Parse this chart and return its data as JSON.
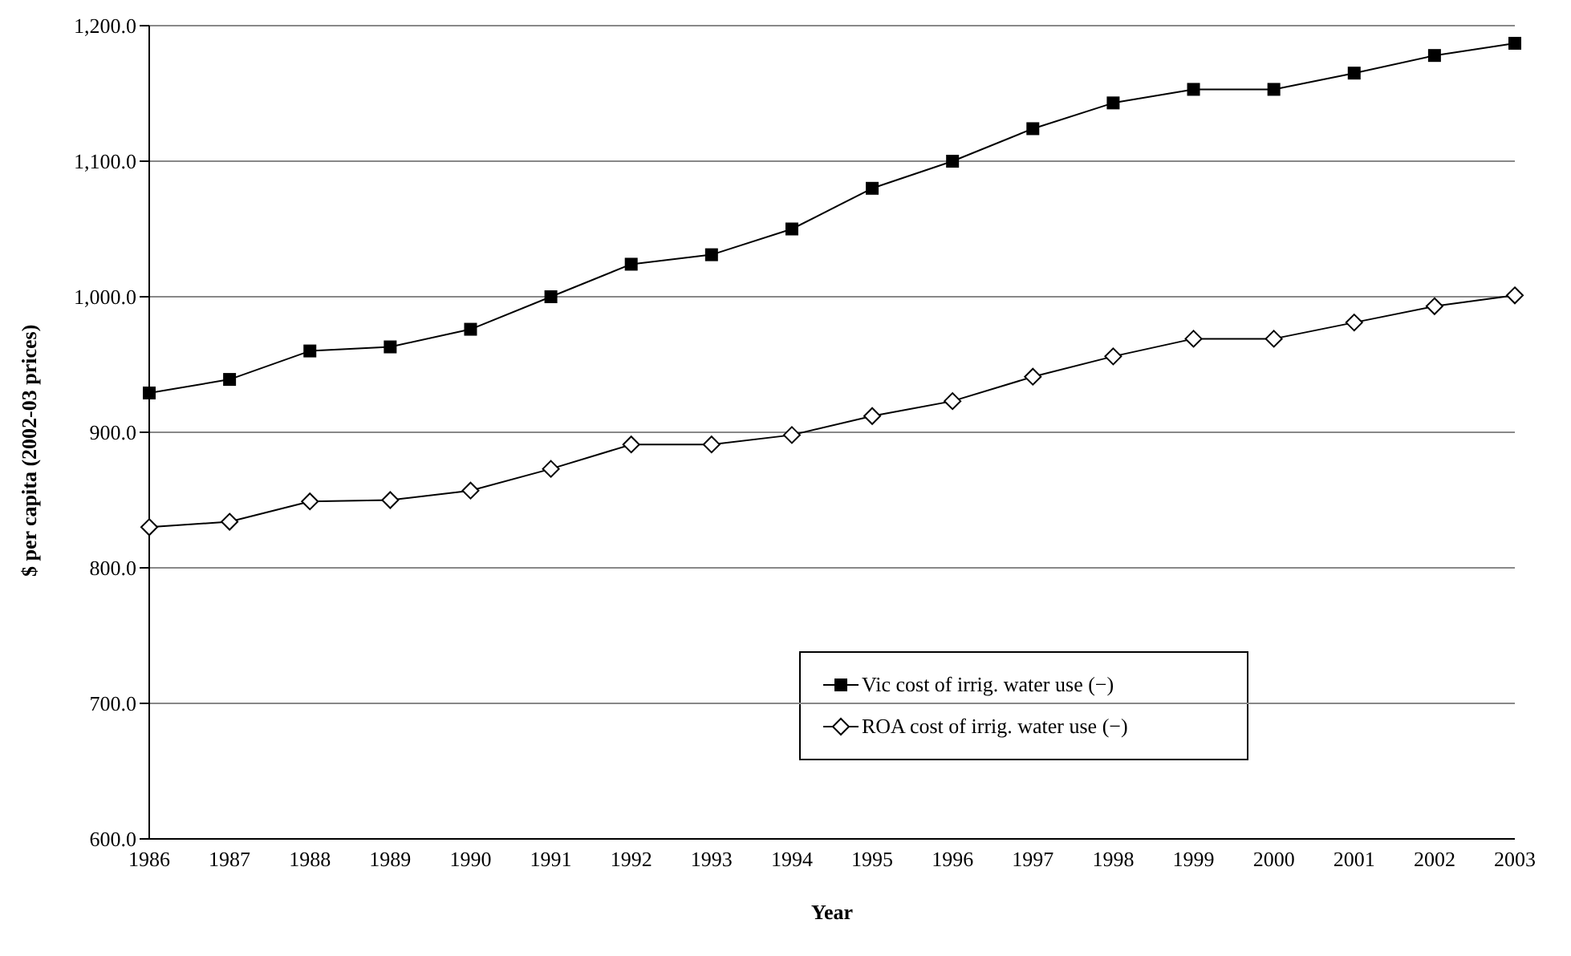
{
  "chart_data": {
    "type": "line",
    "xlabel": "Year",
    "ylabel": "$ per capita (2002-03 prices)",
    "categories": [
      "1986",
      "1987",
      "1988",
      "1989",
      "1990",
      "1991",
      "1992",
      "1993",
      "1994",
      "1995",
      "1996",
      "1997",
      "1998",
      "1999",
      "2000",
      "2001",
      "2002",
      "2003"
    ],
    "series": [
      {
        "name": "Vic cost of irrig. water use (−)",
        "color": "#000000",
        "marker": "square",
        "values": [
          929,
          939,
          960,
          963,
          976,
          1000,
          1024,
          1031,
          1050,
          1080,
          1100,
          1124,
          1143,
          1153,
          1153,
          1165,
          1178,
          1187
        ]
      },
      {
        "name": "ROA cost of irrig. water use (−)",
        "color": "#000000",
        "marker": "diamond",
        "values": [
          830,
          834,
          849,
          850,
          857,
          873,
          891,
          891,
          898,
          912,
          923,
          941,
          956,
          969,
          969,
          981,
          993,
          1001
        ]
      }
    ],
    "ylim": [
      600,
      1200
    ],
    "yticks": [
      {
        "value": 600,
        "label": "600.0"
      },
      {
        "value": 700,
        "label": "700.0"
      },
      {
        "value": 800,
        "label": "800.0"
      },
      {
        "value": 900,
        "label": "900.0"
      },
      {
        "value": 1000,
        "label": "1,000.0"
      },
      {
        "value": 1100,
        "label": "1,100.0"
      },
      {
        "value": 1200,
        "label": "1,200.0"
      }
    ],
    "grid": "y",
    "legend": "bottom",
    "line_style": "solid"
  }
}
